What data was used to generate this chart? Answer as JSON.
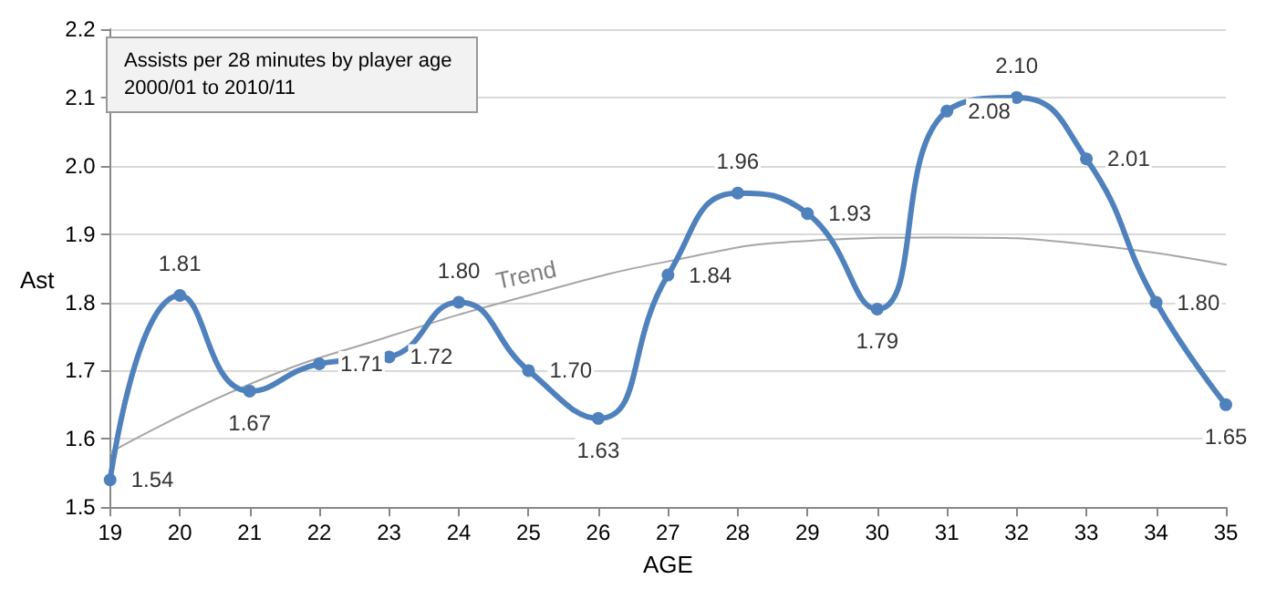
{
  "chart_data": {
    "type": "line",
    "title": "Assists per 28 minutes by player age",
    "subtitle": "2000/01 to 2010/11",
    "xlabel": "AGE",
    "ylabel": "Ast",
    "x": [
      19,
      20,
      21,
      22,
      23,
      24,
      25,
      26,
      27,
      28,
      29,
      30,
      31,
      32,
      33,
      34,
      35
    ],
    "series": [
      {
        "color": "#4f81bd",
        "values": [
          1.54,
          1.81,
          1.67,
          1.71,
          1.72,
          1.8,
          1.7,
          1.63,
          1.84,
          1.96,
          1.93,
          1.79,
          2.08,
          2.1,
          2.01,
          1.8,
          1.65
        ],
        "value_labels": [
          "1.54",
          "1.81",
          "1.67",
          "1.71",
          "1.72",
          "1.80",
          "1.70",
          "1.63",
          "1.84",
          "1.96",
          "1.93",
          "1.79",
          "2.08",
          "2.10",
          "2.01",
          "1.80",
          "1.65"
        ],
        "marker": "circle"
      },
      {
        "name": "Trend",
        "color": "#a6a6a6",
        "x": [
          19,
          21,
          23,
          25,
          27,
          29,
          31,
          33,
          35
        ],
        "values": [
          1.58,
          1.68,
          1.75,
          1.81,
          1.86,
          1.89,
          1.895,
          1.885,
          1.855
        ],
        "marker": "none"
      }
    ],
    "xlim": [
      19,
      35
    ],
    "xticks": [
      19,
      20,
      21,
      22,
      23,
      24,
      25,
      26,
      27,
      28,
      29,
      30,
      31,
      32,
      33,
      34,
      35
    ],
    "ylim": [
      1.5,
      2.2
    ],
    "yticks": [
      {
        "value": 1.5,
        "label": "1.5"
      },
      {
        "value": 1.6,
        "label": "1.6"
      },
      {
        "value": 1.7,
        "label": "1.7"
      },
      {
        "value": 1.8,
        "label": "1.8"
      },
      {
        "value": 1.9,
        "label": "1.9"
      },
      {
        "value": 2.0,
        "label": "2.0"
      },
      {
        "value": 2.1,
        "label": "2.1"
      },
      {
        "value": 2.2,
        "label": "2.2"
      }
    ],
    "grid": "y",
    "legend": false
  }
}
